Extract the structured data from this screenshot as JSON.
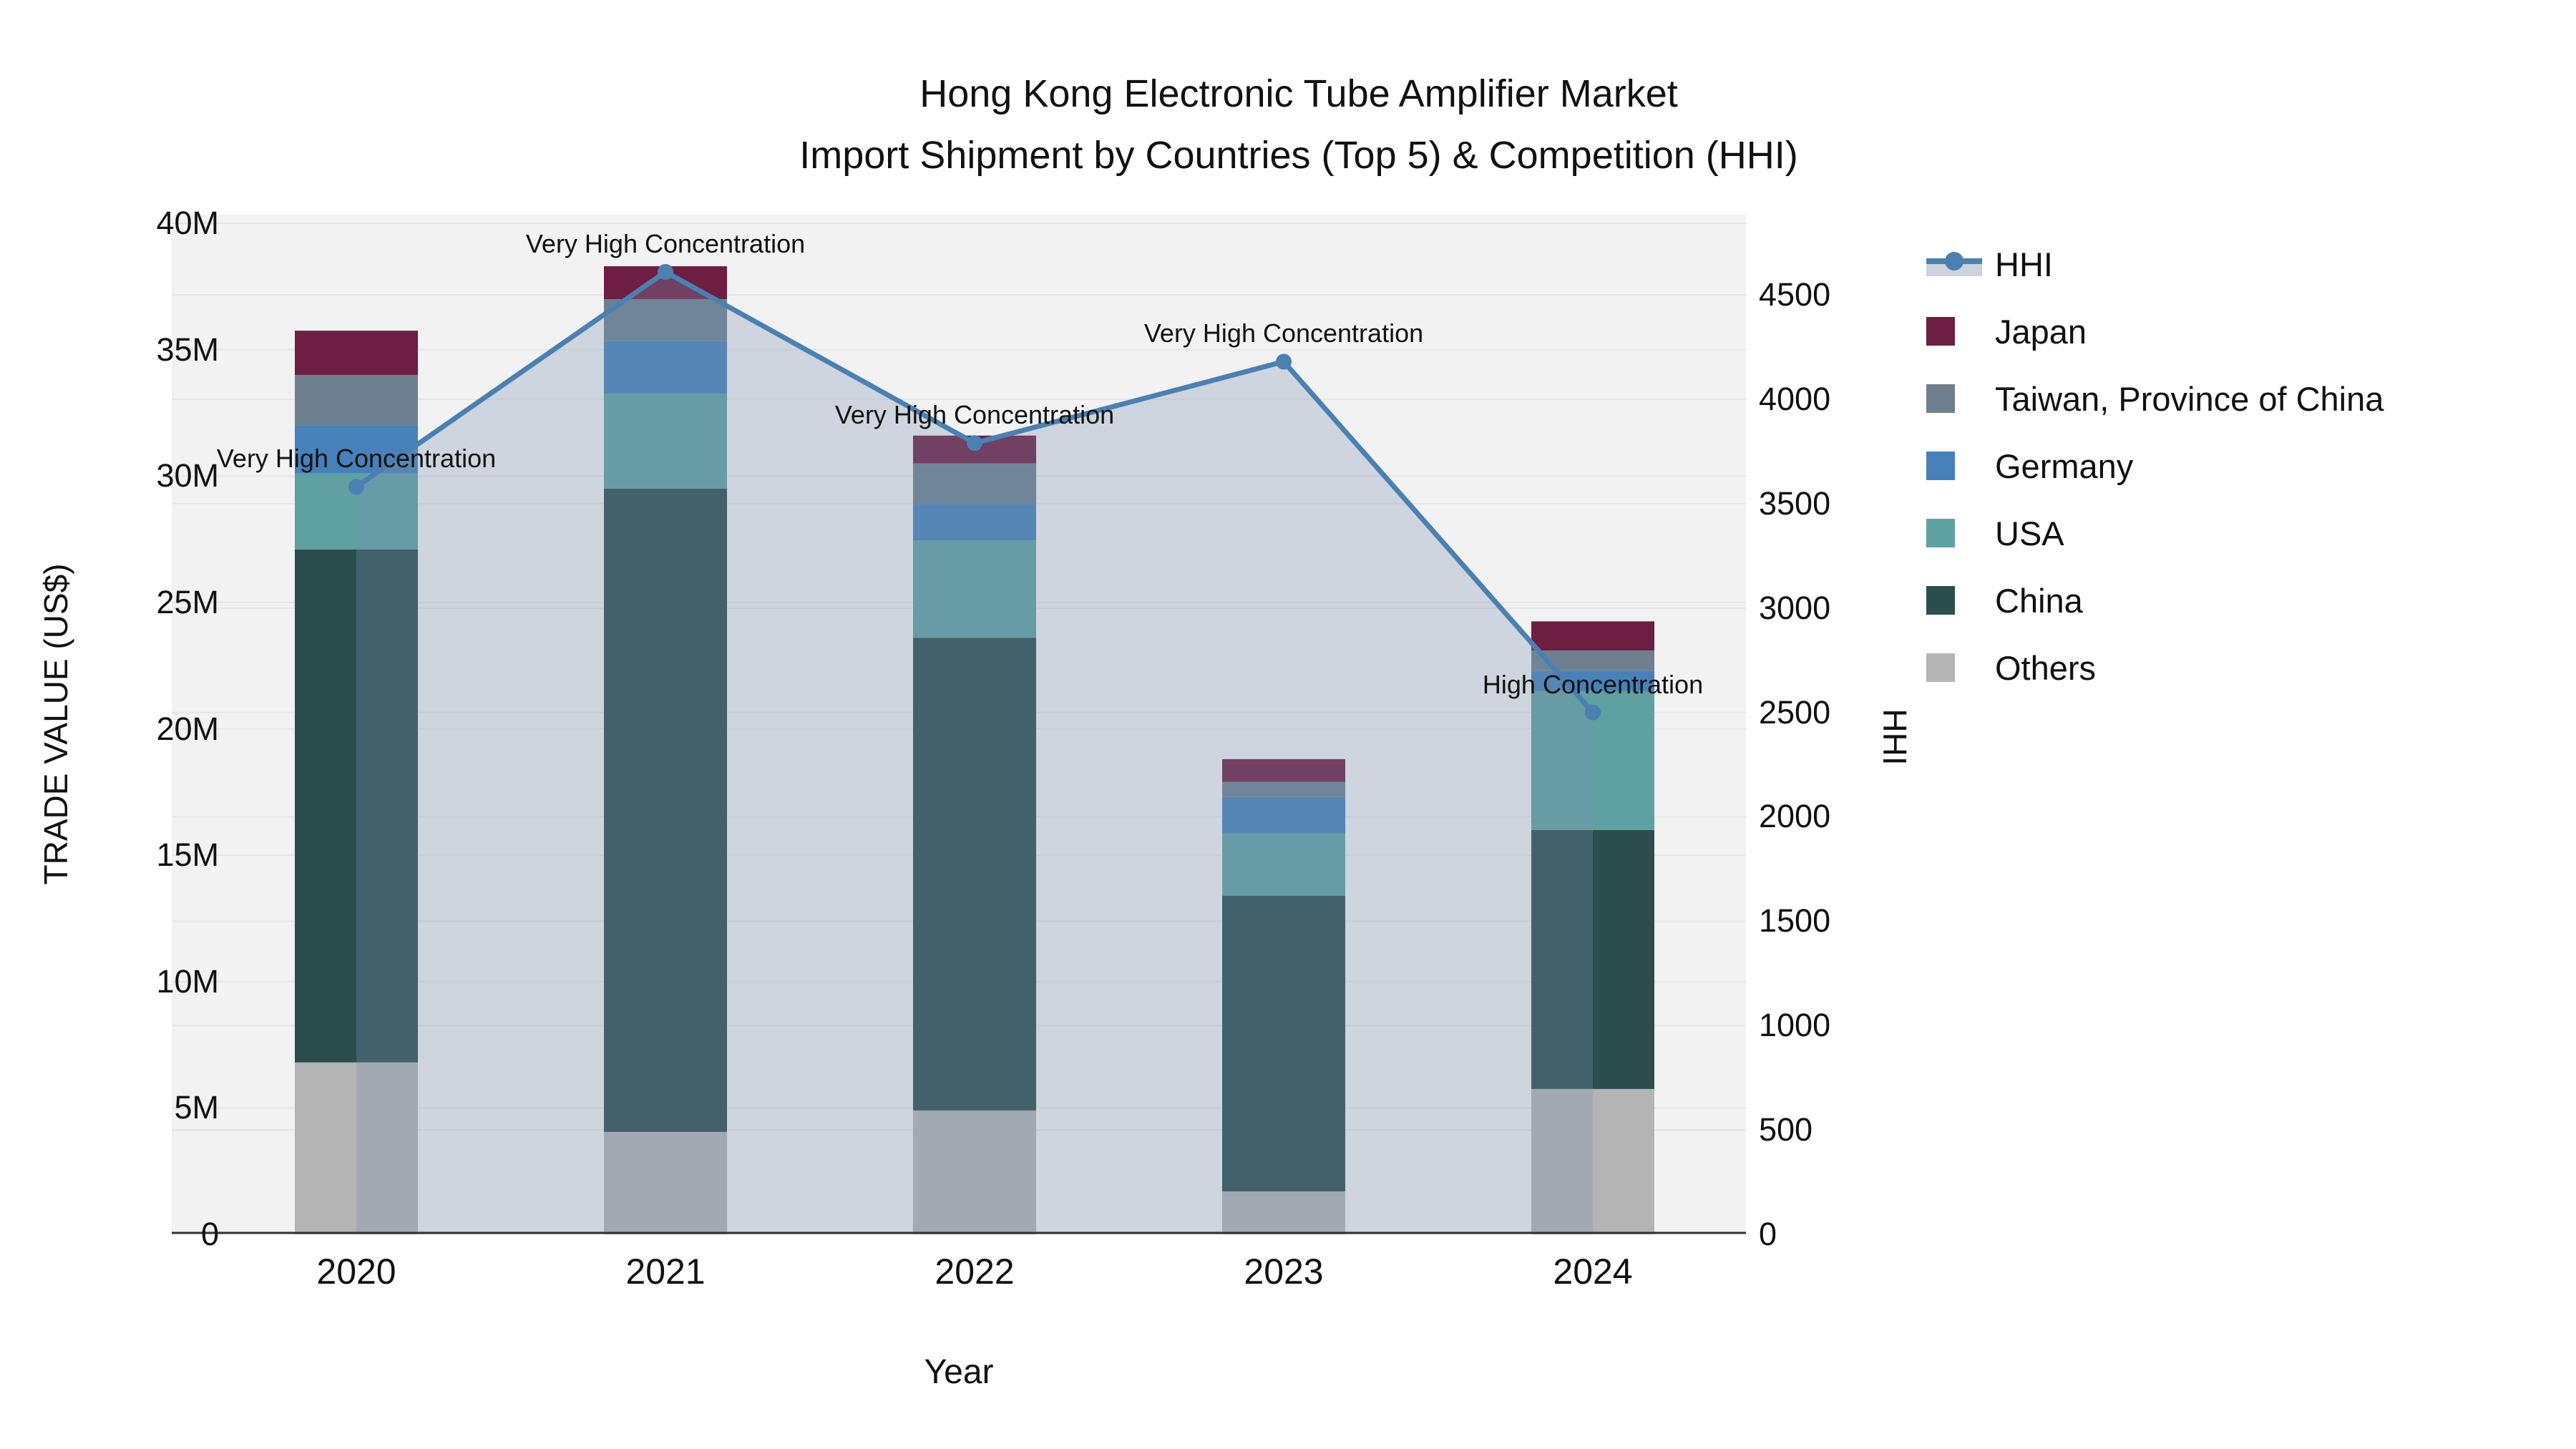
{
  "title": {
    "line1": "Hong Kong Electronic Tube Amplifier Market",
    "line2": "Import Shipment by Countries (Top 5) & Competition (HHI)"
  },
  "axes": {
    "y_left_title": "TRADE VALUE (US$)",
    "y_right_title": "HHI",
    "x_title": "Year"
  },
  "colors": {
    "plot_background": "#f2f2f2",
    "gridline": "#e5e5e5",
    "axis_line": "#333333",
    "text": "#111111"
  },
  "chart_data": {
    "type": "bar",
    "subtype": "stacked-bars-with-line-overlay",
    "categories": [
      "2020",
      "2021",
      "2022",
      "2023",
      "2024"
    ],
    "unit": "millions of US$",
    "series": [
      {
        "id": "others",
        "name": "Others",
        "color": "#b4b4b4",
        "values": [
          6.8,
          4.05,
          4.9,
          1.7,
          5.75
        ]
      },
      {
        "id": "china",
        "name": "China",
        "color": "#2b4d4d",
        "values": [
          20.3,
          25.45,
          18.7,
          11.7,
          10.25
        ]
      },
      {
        "id": "usa",
        "name": "USA",
        "color": "#5fa0a2",
        "values": [
          3.0,
          3.76,
          3.85,
          2.45,
          5.5
        ]
      },
      {
        "id": "germany",
        "name": "Germany",
        "color": "#4682b9",
        "values": [
          1.9,
          2.09,
          1.45,
          1.45,
          0.8
        ]
      },
      {
        "id": "taiwan",
        "name": "Taiwan, Province of China",
        "color": "#6e8090",
        "values": [
          2.0,
          1.65,
          1.6,
          0.6,
          0.8
        ]
      },
      {
        "id": "japan",
        "name": "Japan",
        "color": "#6e1e41",
        "values": [
          1.75,
          1.3,
          1.1,
          0.9,
          1.15
        ]
      }
    ],
    "bar_totals": [
      35.75,
      38.3,
      31.6,
      18.8,
      24.25
    ],
    "hhi": {
      "name": "HHI",
      "color": "#4a80b2",
      "fill_color": "rgba(124,145,175,0.30)",
      "values": [
        3580,
        4610,
        3790,
        4180,
        2500
      ]
    },
    "annotations": [
      {
        "category_index": 0,
        "text": "Very High Concentration"
      },
      {
        "category_index": 1,
        "text": "Very High Concentration"
      },
      {
        "category_index": 2,
        "text": "Very High Concentration"
      },
      {
        "category_index": 3,
        "text": "Very High Concentration"
      },
      {
        "category_index": 4,
        "text": "High Concentration"
      }
    ],
    "y_left": {
      "tick_values": [
        0,
        5,
        10,
        15,
        20,
        25,
        30,
        35,
        40
      ],
      "tick_labels": [
        "0",
        "5M",
        "10M",
        "15M",
        "20M",
        "25M",
        "30M",
        "35M",
        "40M"
      ],
      "axis_max": 40.34,
      "gridlines": true
    },
    "y_right": {
      "tick_values": [
        0,
        500,
        1000,
        1500,
        2000,
        2500,
        3000,
        3500,
        4000,
        4500
      ],
      "tick_labels": [
        "0",
        "500",
        "1000",
        "1500",
        "2000",
        "2500",
        "3000",
        "3500",
        "4000",
        "4500"
      ],
      "axis_max": 4884,
      "gridlines": true
    },
    "legend": [
      {
        "id": "hhi",
        "label": "HHI",
        "type": "line",
        "color": "#4a80b2"
      },
      {
        "id": "japan",
        "label": "Japan",
        "type": "bar",
        "color": "#6e1e41"
      },
      {
        "id": "taiwan",
        "label": "Taiwan, Province of China",
        "type": "bar",
        "color": "#6e8090"
      },
      {
        "id": "germany",
        "label": "Germany",
        "type": "bar",
        "color": "#4682b9"
      },
      {
        "id": "usa",
        "label": "USA",
        "type": "bar",
        "color": "#5fa0a2"
      },
      {
        "id": "china",
        "label": "China",
        "type": "bar",
        "color": "#2b4d4d"
      },
      {
        "id": "others",
        "label": "Others",
        "type": "bar",
        "color": "#b4b4b4"
      }
    ]
  }
}
